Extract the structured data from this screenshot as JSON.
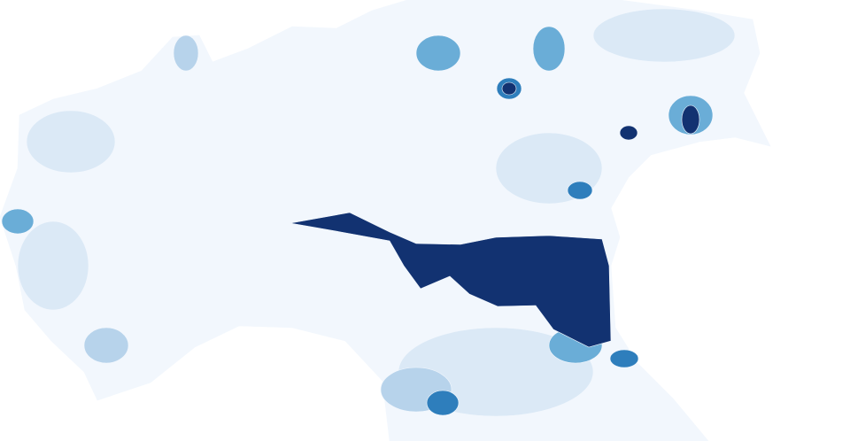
{
  "map": {
    "colors": [
      "#f2f7fd",
      "#dbe9f6",
      "#b7d3eb",
      "#6aadd7",
      "#2e7ebc",
      "#123271"
    ]
  }
}
